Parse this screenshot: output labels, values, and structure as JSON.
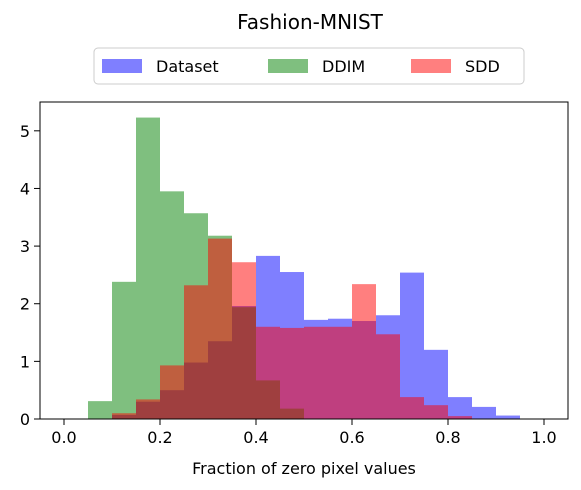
{
  "chart_data": {
    "type": "bar",
    "title": "Fashion-MNIST",
    "xlabel": "Fraction of zero pixel values",
    "ylabel": "",
    "xlim": [
      -0.05,
      1.05
    ],
    "ylim": [
      0,
      5.5
    ],
    "xticks": [
      0.0,
      0.2,
      0.4,
      0.6,
      0.8,
      1.0
    ],
    "xtick_labels": [
      "0.0",
      "0.2",
      "0.4",
      "0.6",
      "0.8",
      "1.0"
    ],
    "yticks": [
      0,
      1,
      2,
      3,
      4,
      5
    ],
    "ytick_labels": [
      "0",
      "1",
      "2",
      "3",
      "4",
      "5"
    ],
    "bin_edges": [
      0.0,
      0.05,
      0.1,
      0.15,
      0.2,
      0.25,
      0.3,
      0.35,
      0.4,
      0.45,
      0.5,
      0.55,
      0.6,
      0.65,
      0.7,
      0.75,
      0.8,
      0.85,
      0.9,
      0.95,
      1.0
    ],
    "legend_position": "top-center, above plot",
    "grid": false,
    "series": [
      {
        "name": "Dataset",
        "color": "#0000ff",
        "alpha": 0.5,
        "values": [
          0,
          0,
          0.07,
          0.3,
          0.5,
          0.98,
          1.35,
          1.96,
          2.83,
          2.55,
          1.72,
          1.74,
          1.7,
          1.8,
          2.54,
          1.2,
          0.38,
          0.21,
          0.06,
          0
        ]
      },
      {
        "name": "DDIM",
        "color": "#008000",
        "alpha": 0.5,
        "values": [
          0,
          0.31,
          2.38,
          5.23,
          3.95,
          3.57,
          3.18,
          1.94,
          0.67,
          0.18,
          0,
          0,
          0,
          0,
          0,
          0,
          0,
          0,
          0,
          0
        ]
      },
      {
        "name": "SDD",
        "color": "#ff0000",
        "alpha": 0.5,
        "values": [
          0,
          0,
          0.1,
          0.34,
          0.93,
          2.32,
          3.13,
          2.72,
          1.6,
          1.58,
          1.6,
          1.6,
          2.34,
          1.47,
          0.38,
          0.24,
          0.05,
          0,
          0,
          0
        ]
      }
    ]
  }
}
